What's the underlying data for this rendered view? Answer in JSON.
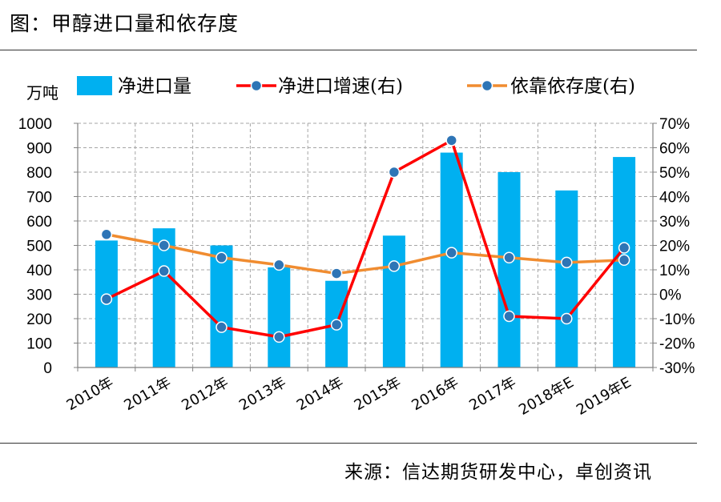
{
  "figure": {
    "title": "图：甲醇进口量和依存度",
    "source": "来源：信达期货研发中心，卓创资讯"
  },
  "chart_data": {
    "type": "bar",
    "categories": [
      "2010年",
      "2011年",
      "2012年",
      "2013年",
      "2014年",
      "2015年",
      "2016年",
      "2017年",
      "2018年E",
      "2019年E"
    ],
    "left_unit": "万吨",
    "left_axis": {
      "min": 0,
      "max": 1000,
      "step": 100,
      "ticks": [
        "0",
        "100",
        "200",
        "300",
        "400",
        "500",
        "600",
        "700",
        "800",
        "900",
        "1000"
      ]
    },
    "right_axis": {
      "min": -30,
      "max": 70,
      "step": 10,
      "ticks": [
        "-30%",
        "-20%",
        "-10%",
        "0%",
        "10%",
        "20%",
        "30%",
        "40%",
        "50%",
        "60%",
        "70%"
      ]
    },
    "grid": true,
    "legend_position": "top",
    "series": [
      {
        "name": "净进口量",
        "kind": "bar",
        "axis": "left",
        "color": "#00b0f0",
        "values": [
          520,
          570,
          500,
          410,
          355,
          540,
          880,
          800,
          725,
          862
        ]
      },
      {
        "name": "净进口增速(右)",
        "kind": "line",
        "axis": "right",
        "color": "#ff0000",
        "marker": "#2e75b6",
        "values": [
          -2,
          9.5,
          -13.5,
          -17.5,
          -12.5,
          50,
          63,
          -9,
          -10,
          19
        ]
      },
      {
        "name": "依靠依存度(右)",
        "kind": "line",
        "axis": "right",
        "color": "#f08c30",
        "marker": "#2e75b6",
        "values": [
          24.5,
          20,
          15,
          12,
          8.5,
          11.5,
          17,
          15,
          13,
          14
        ]
      }
    ]
  }
}
